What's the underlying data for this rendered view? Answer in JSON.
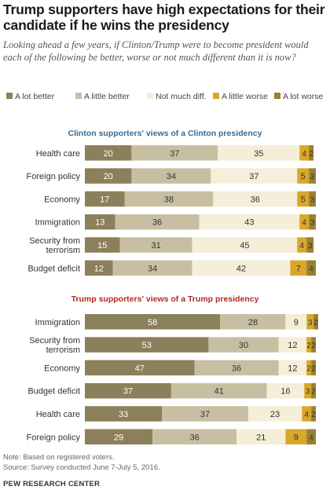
{
  "title": "Trump supporters have high expectations for their candidate if he wins the presidency",
  "subtitle": "Looking ahead a few years, if Clinton/Trump were to become president would each of the following be better, worse or not much different than it is now?",
  "note": "Note: Based on registered voters.",
  "source": "Source:  Survey conducted June 7-July 5, 2016.",
  "org": "PEW RESEARCH CENTER",
  "colors": {
    "a_lot_better": "#8c7f5b",
    "a_little_better": "#c8bfa3",
    "not_much_diff": "#f5eed8",
    "a_little_worse": "#d9a72a",
    "a_lot_worse": "#9b8030",
    "section1": "#3a6a8f",
    "section2": "#b22a1e"
  },
  "chart_data": [
    {
      "type": "bar",
      "title": "Clinton supporters' views of a Clinton presidency",
      "stacked": true,
      "categories": [
        "Health care",
        "Foreign policy",
        "Economy",
        "Immigration",
        "Security from terrorism",
        "Budget deficit"
      ],
      "series": [
        {
          "name": "A lot better",
          "values": [
            20,
            20,
            17,
            13,
            15,
            12
          ]
        },
        {
          "name": "A little better",
          "values": [
            37,
            34,
            38,
            36,
            31,
            34
          ]
        },
        {
          "name": "Not much diff.",
          "values": [
            35,
            37,
            36,
            43,
            45,
            42
          ]
        },
        {
          "name": "A little worse",
          "values": [
            4,
            5,
            5,
            4,
            4,
            7
          ]
        },
        {
          "name": "A lot worse",
          "values": [
            2,
            3,
            3,
            3,
            3,
            4
          ]
        }
      ]
    },
    {
      "type": "bar",
      "title": "Trump supporters' views of a Trump presidency",
      "stacked": true,
      "categories": [
        "Immigration",
        "Security from terrorism",
        "Economy",
        "Budget deficit",
        "Health care",
        "Foreign policy"
      ],
      "series": [
        {
          "name": "A lot better",
          "values": [
            58,
            53,
            47,
            37,
            33,
            29
          ]
        },
        {
          "name": "A little better",
          "values": [
            28,
            30,
            36,
            41,
            37,
            36
          ]
        },
        {
          "name": "Not much diff.",
          "values": [
            9,
            12,
            12,
            16,
            23,
            21
          ]
        },
        {
          "name": "A little worse",
          "values": [
            3,
            2,
            2,
            3,
            4,
            9
          ]
        },
        {
          "name": "A lot worse",
          "values": [
            2,
            2,
            2,
            2,
            2,
            4
          ]
        }
      ]
    }
  ]
}
